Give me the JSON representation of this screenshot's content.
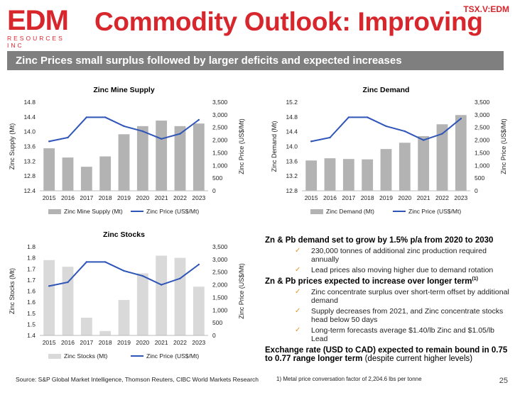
{
  "header": {
    "logo_word": "EDM",
    "logo_sub": "RESOURCES INC",
    "title": "Commodity Outlook: Improving",
    "ticker": "TSX.V:EDM"
  },
  "banner": "Zinc Prices small surplus followed by larger deficits and expected increases",
  "colors": {
    "red": "#d8262d",
    "bar_dark": "#b3b3b3",
    "bar_light": "#d9d9d9",
    "line": "#2f55b8"
  },
  "chart_data": [
    {
      "type": "bar",
      "title": "Zinc Mine Supply",
      "categories": [
        "2015",
        "2016",
        "2017",
        "2018",
        "2019",
        "2020",
        "2021",
        "2022",
        "2023"
      ],
      "ylabel": "Zinc Supply (Mt)",
      "y2label": "Zinc Price (US$/Mt)",
      "ylim": [
        12.4,
        14.8
      ],
      "yticks": [
        "12.4",
        "12.8",
        "13.2",
        "13.6",
        "14.0",
        "14.4",
        "14.8"
      ],
      "y2lim": [
        0,
        3500
      ],
      "y2ticks": [
        "0",
        "500",
        "1,000",
        "1,500",
        "2,000",
        "2,500",
        "3,000",
        "3,500"
      ],
      "series": [
        {
          "name": "Zinc Mine Supply (Mt)",
          "type": "bar",
          "axis": "left",
          "values": [
            13.55,
            13.3,
            13.05,
            13.33,
            13.93,
            14.15,
            14.3,
            14.15,
            14.22
          ]
        },
        {
          "name": "Zinc Price (US$/Mt)",
          "type": "line",
          "axis": "right",
          "values": [
            1950,
            2100,
            2900,
            2900,
            2550,
            2350,
            2050,
            2250,
            2800
          ]
        }
      ],
      "legend": "bottom"
    },
    {
      "type": "bar",
      "title": "Zinc Demand",
      "categories": [
        "2015",
        "2016",
        "2017",
        "2018",
        "2019",
        "2020",
        "2021",
        "2022",
        "2023"
      ],
      "ylabel": "Zinc Demand (Mt)",
      "y2label": "Zinc Price (US$/Mt)",
      "ylim": [
        12.8,
        15.2
      ],
      "yticks": [
        "12.8",
        "13.2",
        "13.6",
        "14.0",
        "14.4",
        "14.8",
        "15.2"
      ],
      "y2lim": [
        0,
        3500
      ],
      "y2ticks": [
        "0",
        "500",
        "1,000",
        "1,500",
        "2,000",
        "2,500",
        "3,000",
        "3,500"
      ],
      "series": [
        {
          "name": "Zinc Demand (Mt)",
          "type": "bar",
          "axis": "left",
          "values": [
            13.62,
            13.68,
            13.66,
            13.65,
            13.93,
            14.1,
            14.28,
            14.6,
            14.85
          ]
        },
        {
          "name": "Zinc Price (US$/Mt)",
          "type": "line",
          "axis": "right",
          "values": [
            1950,
            2100,
            2900,
            2900,
            2550,
            2350,
            2000,
            2250,
            2850
          ]
        }
      ],
      "legend": "bottom"
    },
    {
      "type": "bar",
      "title": "Zinc Stocks",
      "categories": [
        "2015",
        "2016",
        "2017",
        "2018",
        "2019",
        "2020",
        "2021",
        "2022",
        "2023"
      ],
      "ylabel": "Zinc Stocks (Mt)",
      "y2label": "Zinc Price (US$/Mt)",
      "ylim": [
        1.4,
        1.8
      ],
      "yticks": [
        "1.4",
        "1.5",
        "1.5",
        "1.6",
        "1.6",
        "1.7",
        "1.7",
        "1.8",
        "1.8"
      ],
      "y2lim": [
        0,
        3500
      ],
      "y2ticks": [
        "0",
        "500",
        "1,000",
        "1,500",
        "2,000",
        "2,500",
        "3,000",
        "3,500"
      ],
      "series": [
        {
          "name": "Zinc Stocks (Mt)",
          "type": "bar",
          "axis": "left",
          "values": [
            1.74,
            1.71,
            1.48,
            1.42,
            1.56,
            1.68,
            1.76,
            1.75,
            1.62
          ]
        },
        {
          "name": "Zinc Price (US$/Mt)",
          "type": "line",
          "axis": "right",
          "values": [
            1950,
            2100,
            2900,
            2900,
            2550,
            2350,
            2000,
            2250,
            2800
          ]
        }
      ],
      "legend": "bottom"
    }
  ],
  "bullets": {
    "h1": "Zn & Pb demand set to grow by 1.5% p/a from 2020 to 2030",
    "i1": "230,000 tonnes of additional zinc production required annually",
    "i2": "Lead prices also moving higher due to demand rotation",
    "h2": "Zn & Pb prices expected to increase over longer term",
    "h2_sup": "(1)",
    "i3": "Zinc concentrate surplus over short-term offset by additional demand",
    "i4": "Supply decreases from 2021, and Zinc concentrate stocks head below 50 days",
    "i5": "Long-term forecasts average $1.40/lb Zinc and $1.05/lb Lead",
    "exchange_bold": "Exchange rate (USD to CAD) expected to remain bound in 0.75 to 0.77 range longer term",
    "exchange_normal": " (despite current higher levels)",
    "check": "✓"
  },
  "footer": {
    "source": "Source: S&P Global Market Intelligence, Thomson Reuters, CIBC World Markets Research",
    "footnote": "1) Metal price conversation factor of 2,204.6 lbs per tonne",
    "page": "25"
  }
}
